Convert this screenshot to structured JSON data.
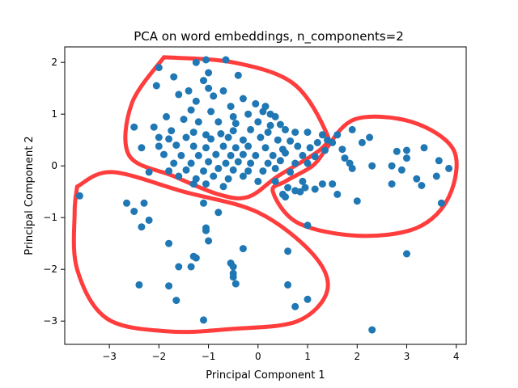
{
  "chart_data": {
    "type": "scatter",
    "title": "PCA on word embeddings, n_components=2",
    "xlabel": "Principal Component 1",
    "ylabel": "Principal Component 2",
    "xlim": [
      -3.9,
      4.2
    ],
    "ylim": [
      -3.45,
      2.3
    ],
    "xticks": [
      -3,
      -2,
      -1,
      0,
      1,
      2,
      3,
      4
    ],
    "yticks": [
      -3,
      -2,
      -1,
      0,
      1,
      2
    ],
    "grid": false,
    "point_color": "#1f77b4",
    "annotation_color": "#ff3333",
    "points": [
      [
        -1.05,
        2.05
      ],
      [
        -0.65,
        2.05
      ],
      [
        -1.25,
        2.0
      ],
      [
        -2.0,
        1.9
      ],
      [
        -1.7,
        1.72
      ],
      [
        -1.0,
        1.8
      ],
      [
        -1.1,
        1.65
      ],
      [
        -0.4,
        1.75
      ],
      [
        -2.05,
        1.55
      ],
      [
        -1.4,
        1.45
      ],
      [
        -1.0,
        1.5
      ],
      [
        -0.7,
        1.45
      ],
      [
        -1.6,
        1.38
      ],
      [
        -1.25,
        1.25
      ],
      [
        -0.9,
        1.35
      ],
      [
        -0.3,
        1.3
      ],
      [
        -0.05,
        1.2
      ],
      [
        0.15,
        1.15
      ],
      [
        -0.55,
        1.15
      ],
      [
        -1.35,
        1.08
      ],
      [
        -0.95,
        1.05
      ],
      [
        -0.5,
        0.95
      ],
      [
        -0.2,
        1.0
      ],
      [
        0.1,
        1.05
      ],
      [
        0.25,
        1.0
      ],
      [
        0.35,
        0.95
      ],
      [
        -1.85,
        0.95
      ],
      [
        -1.5,
        0.9
      ],
      [
        -1.2,
        0.85
      ],
      [
        -0.8,
        0.85
      ],
      [
        -0.45,
        0.82
      ],
      [
        0.0,
        0.85
      ],
      [
        0.25,
        0.78
      ],
      [
        0.45,
        0.8
      ],
      [
        -2.5,
        0.75
      ],
      [
        -2.1,
        0.75
      ],
      [
        -1.75,
        0.68
      ],
      [
        -1.3,
        0.65
      ],
      [
        -1.05,
        0.6
      ],
      [
        -0.75,
        0.62
      ],
      [
        -0.5,
        0.68
      ],
      [
        -0.15,
        0.7
      ],
      [
        0.2,
        0.65
      ],
      [
        0.55,
        0.7
      ],
      [
        0.75,
        0.65
      ],
      [
        1.0,
        0.65
      ],
      [
        1.3,
        0.6
      ],
      [
        -2.0,
        0.55
      ],
      [
        -1.8,
        0.52
      ],
      [
        -1.45,
        0.55
      ],
      [
        -0.95,
        0.52
      ],
      [
        -0.6,
        0.55
      ],
      [
        -0.3,
        0.5
      ],
      [
        0.05,
        0.55
      ],
      [
        0.4,
        0.5
      ],
      [
        0.65,
        0.48
      ],
      [
        1.2,
        0.45
      ],
      [
        1.4,
        0.5
      ],
      [
        -2.35,
        0.35
      ],
      [
        -2.0,
        0.38
      ],
      [
        -1.65,
        0.4
      ],
      [
        -1.3,
        0.38
      ],
      [
        -1.05,
        0.35
      ],
      [
        -0.7,
        0.38
      ],
      [
        -0.45,
        0.35
      ],
      [
        -0.2,
        0.38
      ],
      [
        0.15,
        0.35
      ],
      [
        0.5,
        0.32
      ],
      [
        0.8,
        0.38
      ],
      [
        1.05,
        0.35
      ],
      [
        1.35,
        0.3
      ],
      [
        -1.9,
        0.22
      ],
      [
        -1.55,
        0.2
      ],
      [
        -1.2,
        0.2
      ],
      [
        -0.85,
        0.22
      ],
      [
        -0.55,
        0.2
      ],
      [
        -0.3,
        0.22
      ],
      [
        -0.05,
        0.2
      ],
      [
        0.3,
        0.2
      ],
      [
        0.55,
        0.25
      ],
      [
        0.9,
        0.2
      ],
      [
        1.15,
        0.18
      ],
      [
        -1.7,
        0.05
      ],
      [
        -1.35,
        0.05
      ],
      [
        -1.0,
        0.08
      ],
      [
        -0.65,
        0.05
      ],
      [
        -0.4,
        0.08
      ],
      [
        -0.15,
        0.05
      ],
      [
        0.2,
        0.05
      ],
      [
        0.45,
        0.1
      ],
      [
        0.75,
        0.05
      ],
      [
        1.0,
        0.05
      ],
      [
        -1.8,
        -0.1
      ],
      [
        -1.45,
        -0.08
      ],
      [
        -1.1,
        -0.1
      ],
      [
        -0.8,
        -0.05
      ],
      [
        -0.5,
        -0.08
      ],
      [
        -0.2,
        -0.1
      ],
      [
        0.1,
        -0.1
      ],
      [
        0.35,
        -0.05
      ],
      [
        0.65,
        -0.12
      ],
      [
        -2.2,
        -0.12
      ],
      [
        -1.6,
        -0.2
      ],
      [
        -1.25,
        -0.25
      ],
      [
        -0.9,
        -0.2
      ],
      [
        -0.6,
        -0.25
      ],
      [
        -0.3,
        -0.2
      ],
      [
        0.0,
        -0.3
      ],
      [
        0.35,
        -0.3
      ],
      [
        -1.3,
        -0.35
      ],
      [
        -1.05,
        -0.35
      ],
      [
        -0.7,
        -0.4
      ],
      [
        0.9,
        -0.3
      ],
      [
        0.5,
        -0.55
      ],
      [
        1.15,
        -0.45
      ],
      [
        0.85,
        -0.5
      ],
      [
        -2.65,
        -0.72
      ],
      [
        -2.3,
        -0.72
      ],
      [
        -1.1,
        -0.72
      ],
      [
        -0.8,
        -0.9
      ],
      [
        -2.5,
        -0.88
      ],
      [
        -2.2,
        -1.05
      ],
      [
        -2.35,
        -1.18
      ],
      [
        -1.05,
        -1.2
      ],
      [
        -1.05,
        -1.25
      ],
      [
        -1.8,
        -1.5
      ],
      [
        -1.0,
        -1.45
      ],
      [
        -0.3,
        -1.6
      ],
      [
        -1.3,
        -1.75
      ],
      [
        -1.6,
        -1.95
      ],
      [
        -1.35,
        -1.95
      ],
      [
        -1.25,
        -1.78
      ],
      [
        -0.55,
        -1.88
      ],
      [
        -0.5,
        -1.95
      ],
      [
        -0.5,
        -2.08
      ],
      [
        -0.5,
        -2.15
      ],
      [
        -0.45,
        -2.28
      ],
      [
        -2.4,
        -2.3
      ],
      [
        -1.8,
        -2.32
      ],
      [
        -1.65,
        -2.6
      ],
      [
        0.6,
        -1.65
      ],
      [
        0.6,
        -2.3
      ],
      [
        0.75,
        -2.72
      ],
      [
        1.0,
        -2.58
      ],
      [
        -1.1,
        -2.98
      ],
      [
        2.3,
        -3.17
      ],
      [
        3.0,
        -1.7
      ],
      [
        -3.6,
        -0.58
      ],
      [
        1.0,
        -1.15
      ],
      [
        0.55,
        -0.6
      ],
      [
        0.95,
        -0.42
      ],
      [
        1.3,
        -0.35
      ],
      [
        1.6,
        0.6
      ],
      [
        1.9,
        0.7
      ],
      [
        2.25,
        0.55
      ],
      [
        1.5,
        0.45
      ],
      [
        1.7,
        0.32
      ],
      [
        2.1,
        0.45
      ],
      [
        2.8,
        0.28
      ],
      [
        3.0,
        0.3
      ],
      [
        3.35,
        0.35
      ],
      [
        1.75,
        0.15
      ],
      [
        1.85,
        0.05
      ],
      [
        1.9,
        -0.05
      ],
      [
        2.3,
        0.0
      ],
      [
        2.7,
        0.0
      ],
      [
        2.9,
        -0.08
      ],
      [
        3.0,
        0.15
      ],
      [
        3.65,
        0.1
      ],
      [
        3.85,
        -0.05
      ],
      [
        3.6,
        -0.2
      ],
      [
        3.2,
        -0.25
      ],
      [
        3.3,
        -0.38
      ],
      [
        2.7,
        -0.35
      ],
      [
        1.5,
        -0.35
      ],
      [
        1.6,
        -0.55
      ],
      [
        2.0,
        -0.68
      ],
      [
        3.7,
        -0.72
      ],
      [
        0.6,
        -0.42
      ],
      [
        0.75,
        -0.48
      ]
    ],
    "annotations": [
      {
        "shape": "hand-drawn-loop",
        "color": "#ff3333",
        "path": [
          [
            -1.9,
            2.1
          ],
          [
            -0.5,
            2.0
          ],
          [
            0.7,
            1.6
          ],
          [
            1.35,
            0.7
          ],
          [
            1.3,
            0.35
          ],
          [
            0.4,
            -0.2
          ],
          [
            -0.2,
            -0.6
          ],
          [
            -0.8,
            -0.55
          ],
          [
            -1.7,
            -0.2
          ],
          [
            -2.6,
            0.2
          ],
          [
            -2.55,
            1.2
          ],
          [
            -1.9,
            2.1
          ]
        ]
      },
      {
        "shape": "hand-drawn-loop",
        "color": "#ff3333",
        "path": [
          [
            1.35,
            0.3
          ],
          [
            1.95,
            0.9
          ],
          [
            3.1,
            0.85
          ],
          [
            3.95,
            0.3
          ],
          [
            3.85,
            -0.6
          ],
          [
            3.2,
            -1.2
          ],
          [
            2.0,
            -1.35
          ],
          [
            0.8,
            -1.1
          ],
          [
            0.3,
            -0.5
          ],
          [
            0.55,
            -0.3
          ],
          [
            1.1,
            0.0
          ],
          [
            1.35,
            0.3
          ]
        ]
      },
      {
        "shape": "hand-drawn-loop",
        "color": "#ff3333",
        "path": [
          [
            -3.65,
            -0.4
          ],
          [
            -2.95,
            -0.12
          ],
          [
            -1.5,
            -0.5
          ],
          [
            0.0,
            -0.9
          ],
          [
            1.1,
            -1.7
          ],
          [
            1.4,
            -2.4
          ],
          [
            0.8,
            -3.0
          ],
          [
            -0.5,
            -3.15
          ],
          [
            -1.8,
            -3.2
          ],
          [
            -3.05,
            -2.95
          ],
          [
            -3.65,
            -2.0
          ],
          [
            -3.7,
            -0.9
          ],
          [
            -3.65,
            -0.4
          ]
        ]
      }
    ]
  }
}
